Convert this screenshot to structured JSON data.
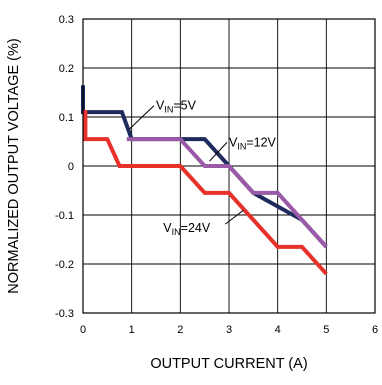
{
  "chart_data": {
    "type": "line",
    "xlabel": "OUTPUT CURRENT (A)",
    "ylabel": "NORMALIZED OUTPUT VOLTAGE (%)",
    "xlim": [
      0,
      6
    ],
    "ylim": [
      -0.3,
      0.3
    ],
    "x_ticks": [
      "0",
      "1",
      "2",
      "3",
      "4",
      "5",
      "6"
    ],
    "y_ticks": [
      "0.3",
      "0.2",
      "0.1",
      "0",
      "-0.1",
      "-0.2",
      "-0.3"
    ],
    "grid": true,
    "legend": "none",
    "series": [
      {
        "name": "VIN=5V",
        "label_main": "V",
        "label_sub": "IN",
        "label_rest": "=5V",
        "color": "#1f2a5c",
        "points": [
          [
            0,
            0.165
          ],
          [
            0,
            0.11
          ],
          [
            0.8,
            0.11
          ],
          [
            1.0,
            0.055
          ],
          [
            2.5,
            0.055
          ],
          [
            3.0,
            0.0
          ],
          [
            3.5,
            -0.055
          ],
          [
            4.5,
            -0.11
          ],
          [
            5.0,
            -0.165
          ]
        ]
      },
      {
        "name": "VIN=12V",
        "label_main": "V",
        "label_sub": "IN",
        "label_rest": "=12V",
        "color": "#9b5aa8",
        "points": [
          [
            0.9,
            0.055
          ],
          [
            2.0,
            0.055
          ],
          [
            2.5,
            0.0
          ],
          [
            3.0,
            0.0
          ],
          [
            3.5,
            -0.055
          ],
          [
            4.0,
            -0.055
          ],
          [
            5.0,
            -0.165
          ]
        ]
      },
      {
        "name": "VIN=24V",
        "label_main": "V",
        "label_sub": "IN",
        "label_rest": "=24V",
        "color": "#e8312a",
        "points": [
          [
            0,
            0.11
          ],
          [
            0.05,
            0.11
          ],
          [
            0.05,
            0.055
          ],
          [
            0.5,
            0.055
          ],
          [
            0.75,
            0.0
          ],
          [
            2.0,
            0.0
          ],
          [
            2.5,
            -0.055
          ],
          [
            3.0,
            -0.055
          ],
          [
            4.0,
            -0.165
          ],
          [
            4.5,
            -0.165
          ],
          [
            5.0,
            -0.22
          ]
        ]
      }
    ],
    "annotations": [
      {
        "series": 0,
        "text_x": 1.5,
        "text_y": 0.115,
        "arrow_to": [
          0.95,
          0.075
        ]
      },
      {
        "series": 1,
        "text_x": 3.0,
        "text_y": 0.04,
        "arrow_to": [
          2.6,
          0.01
        ]
      },
      {
        "series": 2,
        "text_x": 1.65,
        "text_y": -0.135,
        "arrow_to": [
          3.3,
          -0.09
        ]
      }
    ]
  }
}
